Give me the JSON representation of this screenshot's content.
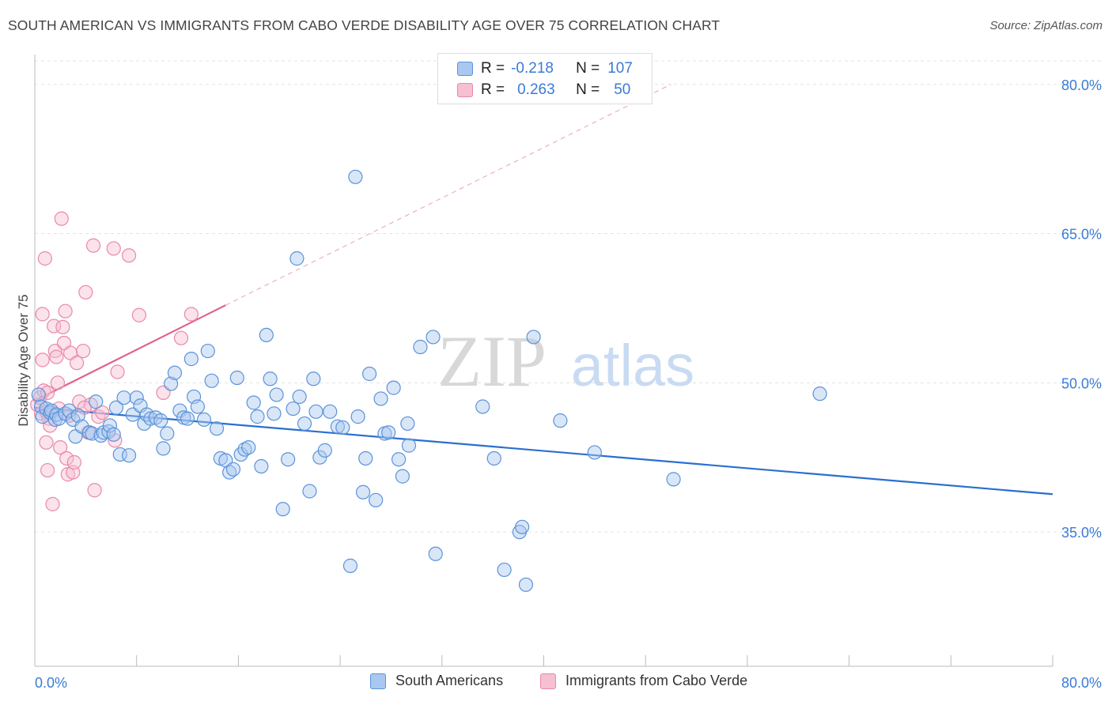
{
  "header": {
    "title": "SOUTH AMERICAN VS IMMIGRANTS FROM CABO VERDE DISABILITY AGE OVER 75 CORRELATION CHART",
    "source": "Source: ZipAtlas.com"
  },
  "legend": {
    "rows": [
      {
        "r_label": "R =",
        "r_value": "-0.218",
        "n_label": "N =",
        "n_value": "107"
      },
      {
        "r_label": "R =",
        "r_value": "0.263",
        "n_label": "N =",
        "n_value": "50"
      }
    ],
    "bottom": [
      "South Americans",
      "Immigrants from Cabo Verde"
    ]
  },
  "watermark": {
    "zip": "ZIP",
    "atlas": "atlas"
  },
  "colors": {
    "blue_fill": "#a8c8f0",
    "blue_stroke": "#5b93d9",
    "blue_line": "#2a6fcf",
    "pink_fill": "#f7bfd2",
    "pink_stroke": "#e889a9",
    "pink_line": "#e0648e",
    "tick_text": "#3a7bd5"
  },
  "chart_data": {
    "type": "scatter",
    "title": "SOUTH AMERICAN VS IMMIGRANTS FROM CABO VERDE DISABILITY AGE OVER 75 CORRELATION CHART",
    "xlabel": "",
    "ylabel": "Disability Age Over 75",
    "xlim": [
      0,
      80
    ],
    "ylim": [
      21.5,
      83
    ],
    "x_tick_labels": [
      "0.0%",
      "80.0%"
    ],
    "y_ticks": [
      35,
      50,
      65,
      80
    ],
    "y_tick_labels": [
      "35.0%",
      "50.0%",
      "65.0%",
      "80.0%"
    ],
    "grid": true,
    "legend_position": "top-center",
    "series": [
      {
        "name": "South Americans",
        "R": -0.218,
        "N": 107,
        "trend": {
          "x": [
            0,
            80
          ],
          "y": [
            47.5,
            38.8
          ],
          "style": "solid"
        },
        "points": [
          [
            0.3,
            48.8
          ],
          [
            0.5,
            47.6
          ],
          [
            0.6,
            46.6
          ],
          [
            0.9,
            47.4
          ],
          [
            1.2,
            47.0
          ],
          [
            1.3,
            47.2
          ],
          [
            1.6,
            46.3
          ],
          [
            1.7,
            46.8
          ],
          [
            1.9,
            46.4
          ],
          [
            2.4,
            46.9
          ],
          [
            2.7,
            47.2
          ],
          [
            3.0,
            46.3
          ],
          [
            3.2,
            44.6
          ],
          [
            3.4,
            46.7
          ],
          [
            3.7,
            45.6
          ],
          [
            4.3,
            45.0
          ],
          [
            4.5,
            44.9
          ],
          [
            4.8,
            48.1
          ],
          [
            5.2,
            44.7
          ],
          [
            5.4,
            45.0
          ],
          [
            5.8,
            45.1
          ],
          [
            5.9,
            45.7
          ],
          [
            6.2,
            44.8
          ],
          [
            6.4,
            47.5
          ],
          [
            6.7,
            42.8
          ],
          [
            7.0,
            48.5
          ],
          [
            7.4,
            42.7
          ],
          [
            7.7,
            46.8
          ],
          [
            8.0,
            48.5
          ],
          [
            8.3,
            47.7
          ],
          [
            8.6,
            45.9
          ],
          [
            8.8,
            46.8
          ],
          [
            9.1,
            46.4
          ],
          [
            9.5,
            46.5
          ],
          [
            9.9,
            46.2
          ],
          [
            10.1,
            43.4
          ],
          [
            10.4,
            44.9
          ],
          [
            10.7,
            49.9
          ],
          [
            11.0,
            51.0
          ],
          [
            11.4,
            47.2
          ],
          [
            11.7,
            46.5
          ],
          [
            12.0,
            46.4
          ],
          [
            12.3,
            52.4
          ],
          [
            12.5,
            48.6
          ],
          [
            12.8,
            47.6
          ],
          [
            13.3,
            46.3
          ],
          [
            13.6,
            53.2
          ],
          [
            13.9,
            50.2
          ],
          [
            14.3,
            45.4
          ],
          [
            14.6,
            42.4
          ],
          [
            15.0,
            42.2
          ],
          [
            15.3,
            41.0
          ],
          [
            15.6,
            41.3
          ],
          [
            15.9,
            50.5
          ],
          [
            16.2,
            42.8
          ],
          [
            16.5,
            43.3
          ],
          [
            16.8,
            43.5
          ],
          [
            17.2,
            48.0
          ],
          [
            17.5,
            46.6
          ],
          [
            17.8,
            41.6
          ],
          [
            18.2,
            54.8
          ],
          [
            18.5,
            50.4
          ],
          [
            18.8,
            46.9
          ],
          [
            19.0,
            48.8
          ],
          [
            19.5,
            37.3
          ],
          [
            19.9,
            42.3
          ],
          [
            20.3,
            47.4
          ],
          [
            20.6,
            62.5
          ],
          [
            20.8,
            48.6
          ],
          [
            21.2,
            45.9
          ],
          [
            21.6,
            39.1
          ],
          [
            21.9,
            50.4
          ],
          [
            22.1,
            47.1
          ],
          [
            22.4,
            42.5
          ],
          [
            22.8,
            43.2
          ],
          [
            23.2,
            47.1
          ],
          [
            23.8,
            45.6
          ],
          [
            24.2,
            45.5
          ],
          [
            24.8,
            31.6
          ],
          [
            25.2,
            70.7
          ],
          [
            25.4,
            46.6
          ],
          [
            25.8,
            39.0
          ],
          [
            26.0,
            42.4
          ],
          [
            26.3,
            50.9
          ],
          [
            26.8,
            38.2
          ],
          [
            27.2,
            48.4
          ],
          [
            27.5,
            44.9
          ],
          [
            27.8,
            45.0
          ],
          [
            28.2,
            49.5
          ],
          [
            28.6,
            42.3
          ],
          [
            28.9,
            40.6
          ],
          [
            29.3,
            45.9
          ],
          [
            29.4,
            43.7
          ],
          [
            30.3,
            53.6
          ],
          [
            31.3,
            54.6
          ],
          [
            31.5,
            32.8
          ],
          [
            35.2,
            47.6
          ],
          [
            36.1,
            42.4
          ],
          [
            36.9,
            31.2
          ],
          [
            38.1,
            35.0
          ],
          [
            38.3,
            35.5
          ],
          [
            38.6,
            29.7
          ],
          [
            39.2,
            54.6
          ],
          [
            50.2,
            40.3
          ],
          [
            61.7,
            48.9
          ],
          [
            41.3,
            46.2
          ],
          [
            44.0,
            43.0
          ]
        ]
      },
      {
        "name": "Immigrants from Cabo Verde",
        "R": 0.263,
        "N": 50,
        "trend": {
          "x": [
            0,
            15
          ],
          "y": [
            48.2,
            57.8
          ],
          "style": "solid",
          "extension_to": [
            50,
            80
          ],
          "extension_style": "dashed"
        },
        "points": [
          [
            0.2,
            47.8
          ],
          [
            0.4,
            48.5
          ],
          [
            0.5,
            46.9
          ],
          [
            0.6,
            52.3
          ],
          [
            0.6,
            56.9
          ],
          [
            0.7,
            49.2
          ],
          [
            0.8,
            62.5
          ],
          [
            0.9,
            47.1
          ],
          [
            0.9,
            44.0
          ],
          [
            1.0,
            41.2
          ],
          [
            1.1,
            46.4
          ],
          [
            1.2,
            45.7
          ],
          [
            1.3,
            47.0
          ],
          [
            1.4,
            37.8
          ],
          [
            1.5,
            55.7
          ],
          [
            1.6,
            53.2
          ],
          [
            1.7,
            52.6
          ],
          [
            1.8,
            50.0
          ],
          [
            1.9,
            47.4
          ],
          [
            2.0,
            43.5
          ],
          [
            2.1,
            66.5
          ],
          [
            2.2,
            55.6
          ],
          [
            2.3,
            54.0
          ],
          [
            2.4,
            57.2
          ],
          [
            2.5,
            42.4
          ],
          [
            2.6,
            40.8
          ],
          [
            2.7,
            46.7
          ],
          [
            2.8,
            53.0
          ],
          [
            3.0,
            41.0
          ],
          [
            3.1,
            42.0
          ],
          [
            3.3,
            52.0
          ],
          [
            3.5,
            48.1
          ],
          [
            3.8,
            53.2
          ],
          [
            4.0,
            59.1
          ],
          [
            4.2,
            45.0
          ],
          [
            4.4,
            47.8
          ],
          [
            4.6,
            63.8
          ],
          [
            4.7,
            39.2
          ],
          [
            5.0,
            46.6
          ],
          [
            5.3,
            47.0
          ],
          [
            6.2,
            63.5
          ],
          [
            6.3,
            44.2
          ],
          [
            6.5,
            51.1
          ],
          [
            7.4,
            62.8
          ],
          [
            8.2,
            56.8
          ],
          [
            10.1,
            49.0
          ],
          [
            11.5,
            54.5
          ],
          [
            12.3,
            56.9
          ],
          [
            3.9,
            47.5
          ],
          [
            1.0,
            49.0
          ]
        ]
      }
    ]
  }
}
